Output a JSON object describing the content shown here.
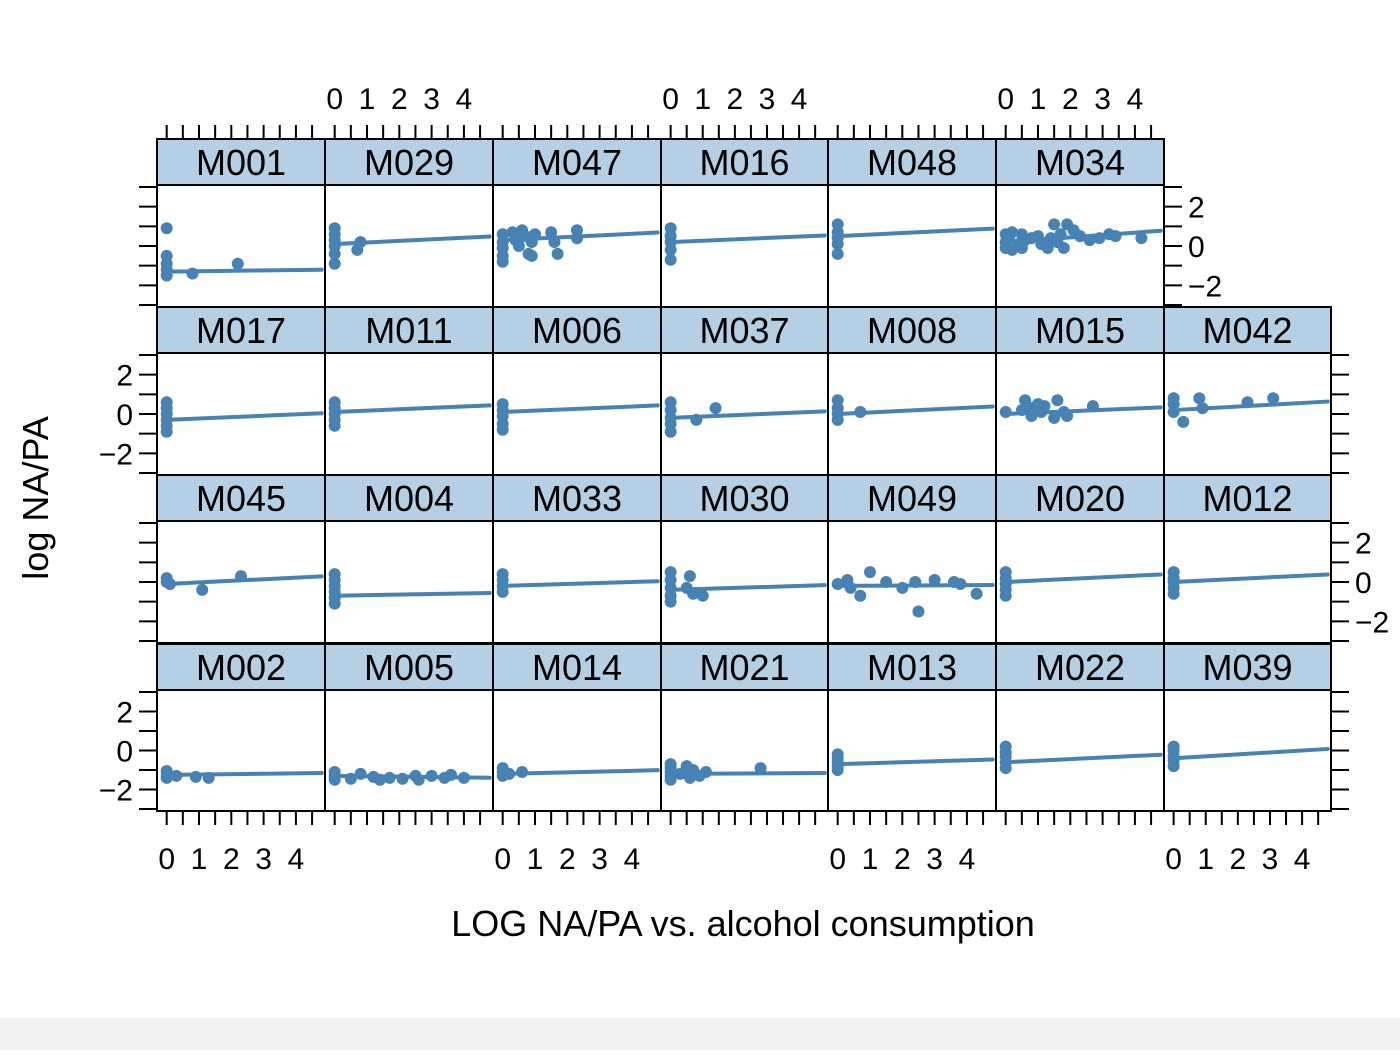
{
  "chart_data": {
    "type": "scatter",
    "title": "",
    "xlabel": "LOG NA/PA vs. alcohol consumption",
    "ylabel": "log NA/PA",
    "xlim": [
      -0.3,
      4.9
    ],
    "ylim": [
      -3.1,
      3.1
    ],
    "x_ticks": [
      "0",
      "1",
      "2",
      "3",
      "4"
    ],
    "y_ticks": [
      "−2",
      "0",
      "2"
    ],
    "point_color": "#4682b4",
    "line_color": "#4682b4",
    "strip_color": "#b5cfe4",
    "layout": "4 rows x 7 columns",
    "panels": [
      {
        "label": "M002",
        "row": 0,
        "col": 0,
        "fit": [
          -1.25,
          0.02
        ],
        "points": [
          [
            0,
            -1.05
          ],
          [
            0,
            -1.25
          ],
          [
            0,
            -1.4
          ],
          [
            0.3,
            -1.3
          ],
          [
            0.9,
            -1.35
          ],
          [
            1.3,
            -1.4
          ]
        ]
      },
      {
        "label": "M005",
        "row": 0,
        "col": 1,
        "fit": [
          -1.3,
          -0.02
        ],
        "points": [
          [
            0,
            -1.1
          ],
          [
            0,
            -1.3
          ],
          [
            0,
            -1.5
          ],
          [
            0.5,
            -1.45
          ],
          [
            0.8,
            -1.2
          ],
          [
            1.2,
            -1.35
          ],
          [
            1.4,
            -1.5
          ],
          [
            1.7,
            -1.4
          ],
          [
            2.1,
            -1.45
          ],
          [
            2.5,
            -1.3
          ],
          [
            2.6,
            -1.5
          ],
          [
            3,
            -1.3
          ],
          [
            3.4,
            -1.4
          ],
          [
            3.6,
            -1.25
          ],
          [
            4,
            -1.4
          ]
        ]
      },
      {
        "label": "M014",
        "row": 0,
        "col": 2,
        "fit": [
          -1.2,
          0.04
        ],
        "points": [
          [
            0,
            -0.9
          ],
          [
            0,
            -1.1
          ],
          [
            0,
            -1.3
          ],
          [
            0.2,
            -1.2
          ],
          [
            0.6,
            -1.1
          ]
        ]
      },
      {
        "label": "M021",
        "row": 0,
        "col": 3,
        "fit": [
          -1.2,
          0.01
        ],
        "points": [
          [
            0,
            -0.7
          ],
          [
            0,
            -0.9
          ],
          [
            0,
            -1.1
          ],
          [
            0,
            -1.3
          ],
          [
            0,
            -1.5
          ],
          [
            0.3,
            -1.2
          ],
          [
            0.5,
            -0.8
          ],
          [
            0.6,
            -1.4
          ],
          [
            0.7,
            -1.0
          ],
          [
            0.9,
            -1.3
          ],
          [
            1.1,
            -1.1
          ],
          [
            2.8,
            -0.9
          ]
        ]
      },
      {
        "label": "M013",
        "row": 0,
        "col": 4,
        "fit": [
          -0.7,
          0.05
        ],
        "points": [
          [
            0,
            -0.2
          ],
          [
            0,
            -0.4
          ],
          [
            0,
            -0.6
          ],
          [
            0,
            -0.8
          ],
          [
            0,
            -1.0
          ]
        ]
      },
      {
        "label": "M022",
        "row": 0,
        "col": 5,
        "fit": [
          -0.6,
          0.08
        ],
        "points": [
          [
            0,
            0.2
          ],
          [
            0,
            -0.1
          ],
          [
            0,
            -0.3
          ],
          [
            0,
            -0.6
          ],
          [
            0,
            -0.9
          ]
        ]
      },
      {
        "label": "M039",
        "row": 0,
        "col": 6,
        "fit": [
          -0.4,
          0.1
        ],
        "points": [
          [
            0,
            0.2
          ],
          [
            0,
            0
          ],
          [
            0,
            -0.3
          ],
          [
            0,
            -0.5
          ],
          [
            0,
            -0.8
          ]
        ]
      },
      {
        "label": "M045",
        "row": 1,
        "col": 0,
        "fit": [
          -0.1,
          0.08
        ],
        "points": [
          [
            0,
            0.2
          ],
          [
            0,
            0
          ],
          [
            0.1,
            -0.1
          ],
          [
            1.1,
            -0.4
          ],
          [
            2.3,
            0.3
          ]
        ]
      },
      {
        "label": "M004",
        "row": 1,
        "col": 1,
        "fit": [
          -0.7,
          0.03
        ],
        "points": [
          [
            0,
            0.4
          ],
          [
            0,
            0.1
          ],
          [
            0,
            -0.2
          ],
          [
            0,
            -0.5
          ],
          [
            0,
            -0.8
          ],
          [
            0,
            -1.1
          ]
        ]
      },
      {
        "label": "M033",
        "row": 1,
        "col": 2,
        "fit": [
          -0.2,
          0.05
        ],
        "points": [
          [
            0,
            0.4
          ],
          [
            0,
            0.1
          ],
          [
            0,
            -0.2
          ],
          [
            0,
            -0.5
          ]
        ]
      },
      {
        "label": "M030",
        "row": 1,
        "col": 3,
        "fit": [
          -0.4,
          0.05
        ],
        "points": [
          [
            0,
            0.5
          ],
          [
            0,
            0.1
          ],
          [
            0,
            -0.3
          ],
          [
            0,
            -0.7
          ],
          [
            0,
            -1.0
          ],
          [
            0.5,
            -0.3
          ],
          [
            0.6,
            0.3
          ],
          [
            0.7,
            -0.6
          ],
          [
            1.0,
            -0.7
          ]
        ]
      },
      {
        "label": "M049",
        "row": 1,
        "col": 4,
        "fit": [
          -0.2,
          0.01
        ],
        "points": [
          [
            0,
            -0.1
          ],
          [
            0.3,
            0.1
          ],
          [
            0.4,
            -0.3
          ],
          [
            0.7,
            -0.7
          ],
          [
            1.0,
            0.5
          ],
          [
            1.5,
            0
          ],
          [
            2.0,
            -0.3
          ],
          [
            2.4,
            0
          ],
          [
            2.5,
            -1.5
          ],
          [
            3.0,
            0.1
          ],
          [
            3.6,
            0
          ],
          [
            3.8,
            -0.1
          ],
          [
            4.3,
            -0.6
          ]
        ]
      },
      {
        "label": "M020",
        "row": 1,
        "col": 5,
        "fit": [
          0,
          0.08
        ],
        "points": [
          [
            0,
            0.5
          ],
          [
            0,
            0.2
          ],
          [
            0,
            -0.1
          ],
          [
            0,
            -0.4
          ],
          [
            0,
            -0.7
          ]
        ]
      },
      {
        "label": "M012",
        "row": 1,
        "col": 6,
        "fit": [
          0,
          0.08
        ],
        "points": [
          [
            0,
            0.5
          ],
          [
            0,
            0.2
          ],
          [
            0,
            0
          ],
          [
            0,
            -0.3
          ],
          [
            0,
            -0.6
          ]
        ]
      },
      {
        "label": "M017",
        "row": 2,
        "col": 0,
        "fit": [
          -0.3,
          0.07
        ],
        "points": [
          [
            0,
            0.6
          ],
          [
            0,
            0.3
          ],
          [
            0,
            0
          ],
          [
            0,
            -0.3
          ],
          [
            0,
            -0.6
          ],
          [
            0,
            -0.9
          ]
        ]
      },
      {
        "label": "M011",
        "row": 2,
        "col": 1,
        "fit": [
          0.1,
          0.07
        ],
        "points": [
          [
            0,
            0.6
          ],
          [
            0,
            0.3
          ],
          [
            0,
            0
          ],
          [
            0,
            -0.3
          ],
          [
            0,
            -0.6
          ]
        ]
      },
      {
        "label": "M006",
        "row": 2,
        "col": 2,
        "fit": [
          0.1,
          0.07
        ],
        "points": [
          [
            0,
            0.5
          ],
          [
            0,
            0.2
          ],
          [
            0,
            -0.1
          ],
          [
            0,
            -0.5
          ],
          [
            0,
            -0.8
          ]
        ]
      },
      {
        "label": "M037",
        "row": 2,
        "col": 3,
        "fit": [
          -0.2,
          0.07
        ],
        "points": [
          [
            0,
            0.6
          ],
          [
            0,
            0.2
          ],
          [
            0,
            -0.2
          ],
          [
            0,
            -0.5
          ],
          [
            0,
            -0.9
          ],
          [
            0.8,
            -0.3
          ],
          [
            1.4,
            0.3
          ]
        ]
      },
      {
        "label": "M008",
        "row": 2,
        "col": 4,
        "fit": [
          0,
          0.08
        ],
        "points": [
          [
            0,
            0.7
          ],
          [
            0,
            0.3
          ],
          [
            0,
            0
          ],
          [
            0,
            -0.3
          ],
          [
            0.7,
            0.1
          ]
        ]
      },
      {
        "label": "M015",
        "row": 2,
        "col": 5,
        "fit": [
          0,
          0.07
        ],
        "points": [
          [
            0,
            0.1
          ],
          [
            0.5,
            0.2
          ],
          [
            0.6,
            0.7
          ],
          [
            0.8,
            0.3
          ],
          [
            0.8,
            -0.1
          ],
          [
            1.0,
            0.5
          ],
          [
            1.1,
            0.1
          ],
          [
            1.2,
            0.4
          ],
          [
            1.5,
            -0.2
          ],
          [
            1.6,
            0.7
          ],
          [
            1.8,
            0.1
          ],
          [
            1.9,
            -0.1
          ],
          [
            2.7,
            0.4
          ]
        ]
      },
      {
        "label": "M042",
        "row": 2,
        "col": 6,
        "fit": [
          0.2,
          0.09
        ],
        "points": [
          [
            0,
            0.8
          ],
          [
            0,
            0.5
          ],
          [
            0,
            0.1
          ],
          [
            0.3,
            -0.4
          ],
          [
            0.8,
            0.8
          ],
          [
            0.9,
            0.3
          ],
          [
            2.3,
            0.6
          ],
          [
            3.1,
            0.8
          ]
        ]
      },
      {
        "label": "M001",
        "row": 3,
        "col": 0,
        "fit": [
          -1.3,
          0.02
        ],
        "points": [
          [
            0,
            0.9
          ],
          [
            0,
            -0.5
          ],
          [
            0,
            -0.9
          ],
          [
            0,
            -1.2
          ],
          [
            0,
            -1.5
          ],
          [
            0.8,
            -1.4
          ],
          [
            2.2,
            -0.9
          ]
        ]
      },
      {
        "label": "M029",
        "row": 3,
        "col": 1,
        "fit": [
          0.1,
          0.08
        ],
        "points": [
          [
            0,
            0.9
          ],
          [
            0,
            0.6
          ],
          [
            0,
            0.3
          ],
          [
            0,
            0
          ],
          [
            0,
            -0.4
          ],
          [
            0,
            -0.9
          ],
          [
            0.7,
            -0.2
          ],
          [
            0.8,
            0.2
          ]
        ]
      },
      {
        "label": "M047",
        "row": 3,
        "col": 2,
        "fit": [
          0.3,
          0.08
        ],
        "points": [
          [
            0,
            0.6
          ],
          [
            0,
            0.2
          ],
          [
            0,
            -0.1
          ],
          [
            0,
            -0.5
          ],
          [
            0,
            -0.8
          ],
          [
            0.3,
            0.7
          ],
          [
            0.4,
            0.3
          ],
          [
            0.5,
            0
          ],
          [
            0.6,
            0.8
          ],
          [
            0.7,
            0.5
          ],
          [
            0.8,
            -0.4
          ],
          [
            0.9,
            0.2
          ],
          [
            0.9,
            -0.5
          ],
          [
            1.0,
            0.6
          ],
          [
            1.5,
            0.7
          ],
          [
            1.6,
            0.2
          ],
          [
            1.7,
            -0.4
          ],
          [
            2.3,
            0.8
          ],
          [
            2.3,
            0.4
          ]
        ]
      },
      {
        "label": "M016",
        "row": 3,
        "col": 3,
        "fit": [
          0.2,
          0.07
        ],
        "points": [
          [
            0,
            0.9
          ],
          [
            0,
            0.5
          ],
          [
            0,
            0.2
          ],
          [
            0,
            -0.2
          ],
          [
            0,
            -0.7
          ]
        ]
      },
      {
        "label": "M048",
        "row": 3,
        "col": 4,
        "fit": [
          0.5,
          0.08
        ],
        "points": [
          [
            0,
            1.1
          ],
          [
            0,
            0.7
          ],
          [
            0,
            0.4
          ],
          [
            0,
            0.1
          ],
          [
            0,
            -0.4
          ]
        ]
      },
      {
        "label": "M034",
        "row": 3,
        "col": 5,
        "fit": [
          0.2,
          0.12
        ],
        "points": [
          [
            0,
            0.6
          ],
          [
            0,
            0.2
          ],
          [
            0,
            -0.1
          ],
          [
            0.1,
            0.4
          ],
          [
            0.2,
            0.7
          ],
          [
            0.2,
            -0.2
          ],
          [
            0.4,
            0.1
          ],
          [
            0.5,
            0.6
          ],
          [
            0.5,
            -0.1
          ],
          [
            0.6,
            0.3
          ],
          [
            0.8,
            0.4
          ],
          [
            1.0,
            0.5
          ],
          [
            1.1,
            0.1
          ],
          [
            1.3,
            -0.1
          ],
          [
            1.4,
            0.4
          ],
          [
            1.5,
            1.1
          ],
          [
            1.6,
            0.2
          ],
          [
            1.7,
            0.6
          ],
          [
            1.8,
            -0.1
          ],
          [
            1.9,
            1.1
          ],
          [
            2.1,
            0.8
          ],
          [
            2.3,
            0.5
          ],
          [
            2.6,
            0.3
          ],
          [
            2.9,
            0.4
          ],
          [
            3.2,
            0.6
          ],
          [
            3.4,
            0.5
          ],
          [
            4.2,
            0.4
          ]
        ]
      }
    ]
  }
}
